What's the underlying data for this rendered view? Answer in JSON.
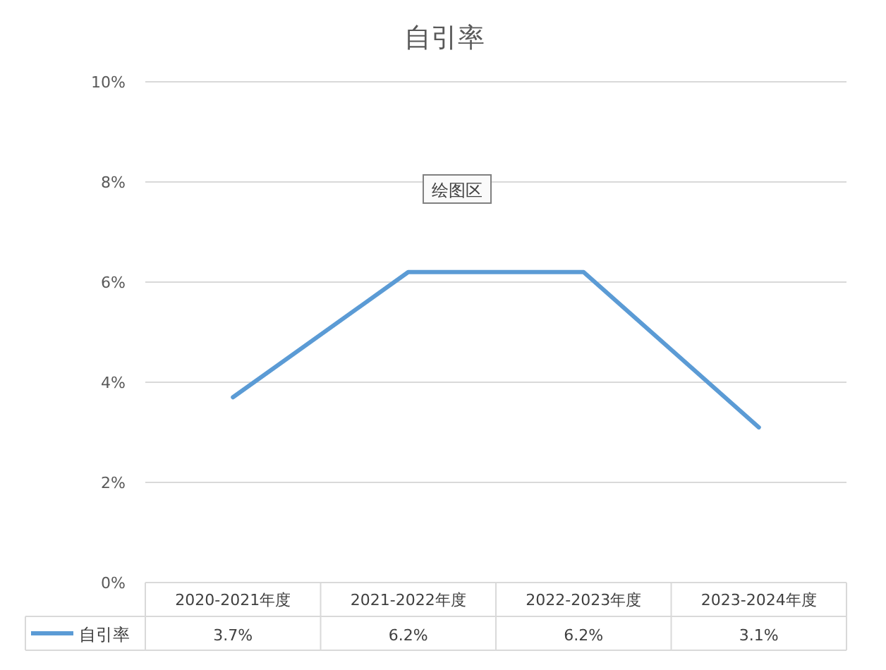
{
  "chart_data": {
    "type": "line",
    "title": "自引率",
    "categories": [
      "2020-2021年度",
      "2021-2022年度",
      "2022-2023年度",
      "2023-2024年度"
    ],
    "series": [
      {
        "name": "自引率",
        "color": "#5b9bd5",
        "values": [
          3.7,
          6.2,
          6.2,
          3.1
        ],
        "value_labels": [
          "3.7%",
          "6.2%",
          "6.2%",
          "3.1%"
        ]
      }
    ],
    "ylim": [
      0,
      10
    ],
    "yticks": [
      {
        "value": 0,
        "label": "0%"
      },
      {
        "value": 2,
        "label": "2%"
      },
      {
        "value": 4,
        "label": "4%"
      },
      {
        "value": 6,
        "label": "6%"
      },
      {
        "value": 8,
        "label": "8%"
      },
      {
        "value": 10,
        "label": "10%"
      }
    ],
    "grid": "y",
    "legend": "bottom",
    "marker": "none",
    "annotations": [
      "绘图区"
    ]
  }
}
